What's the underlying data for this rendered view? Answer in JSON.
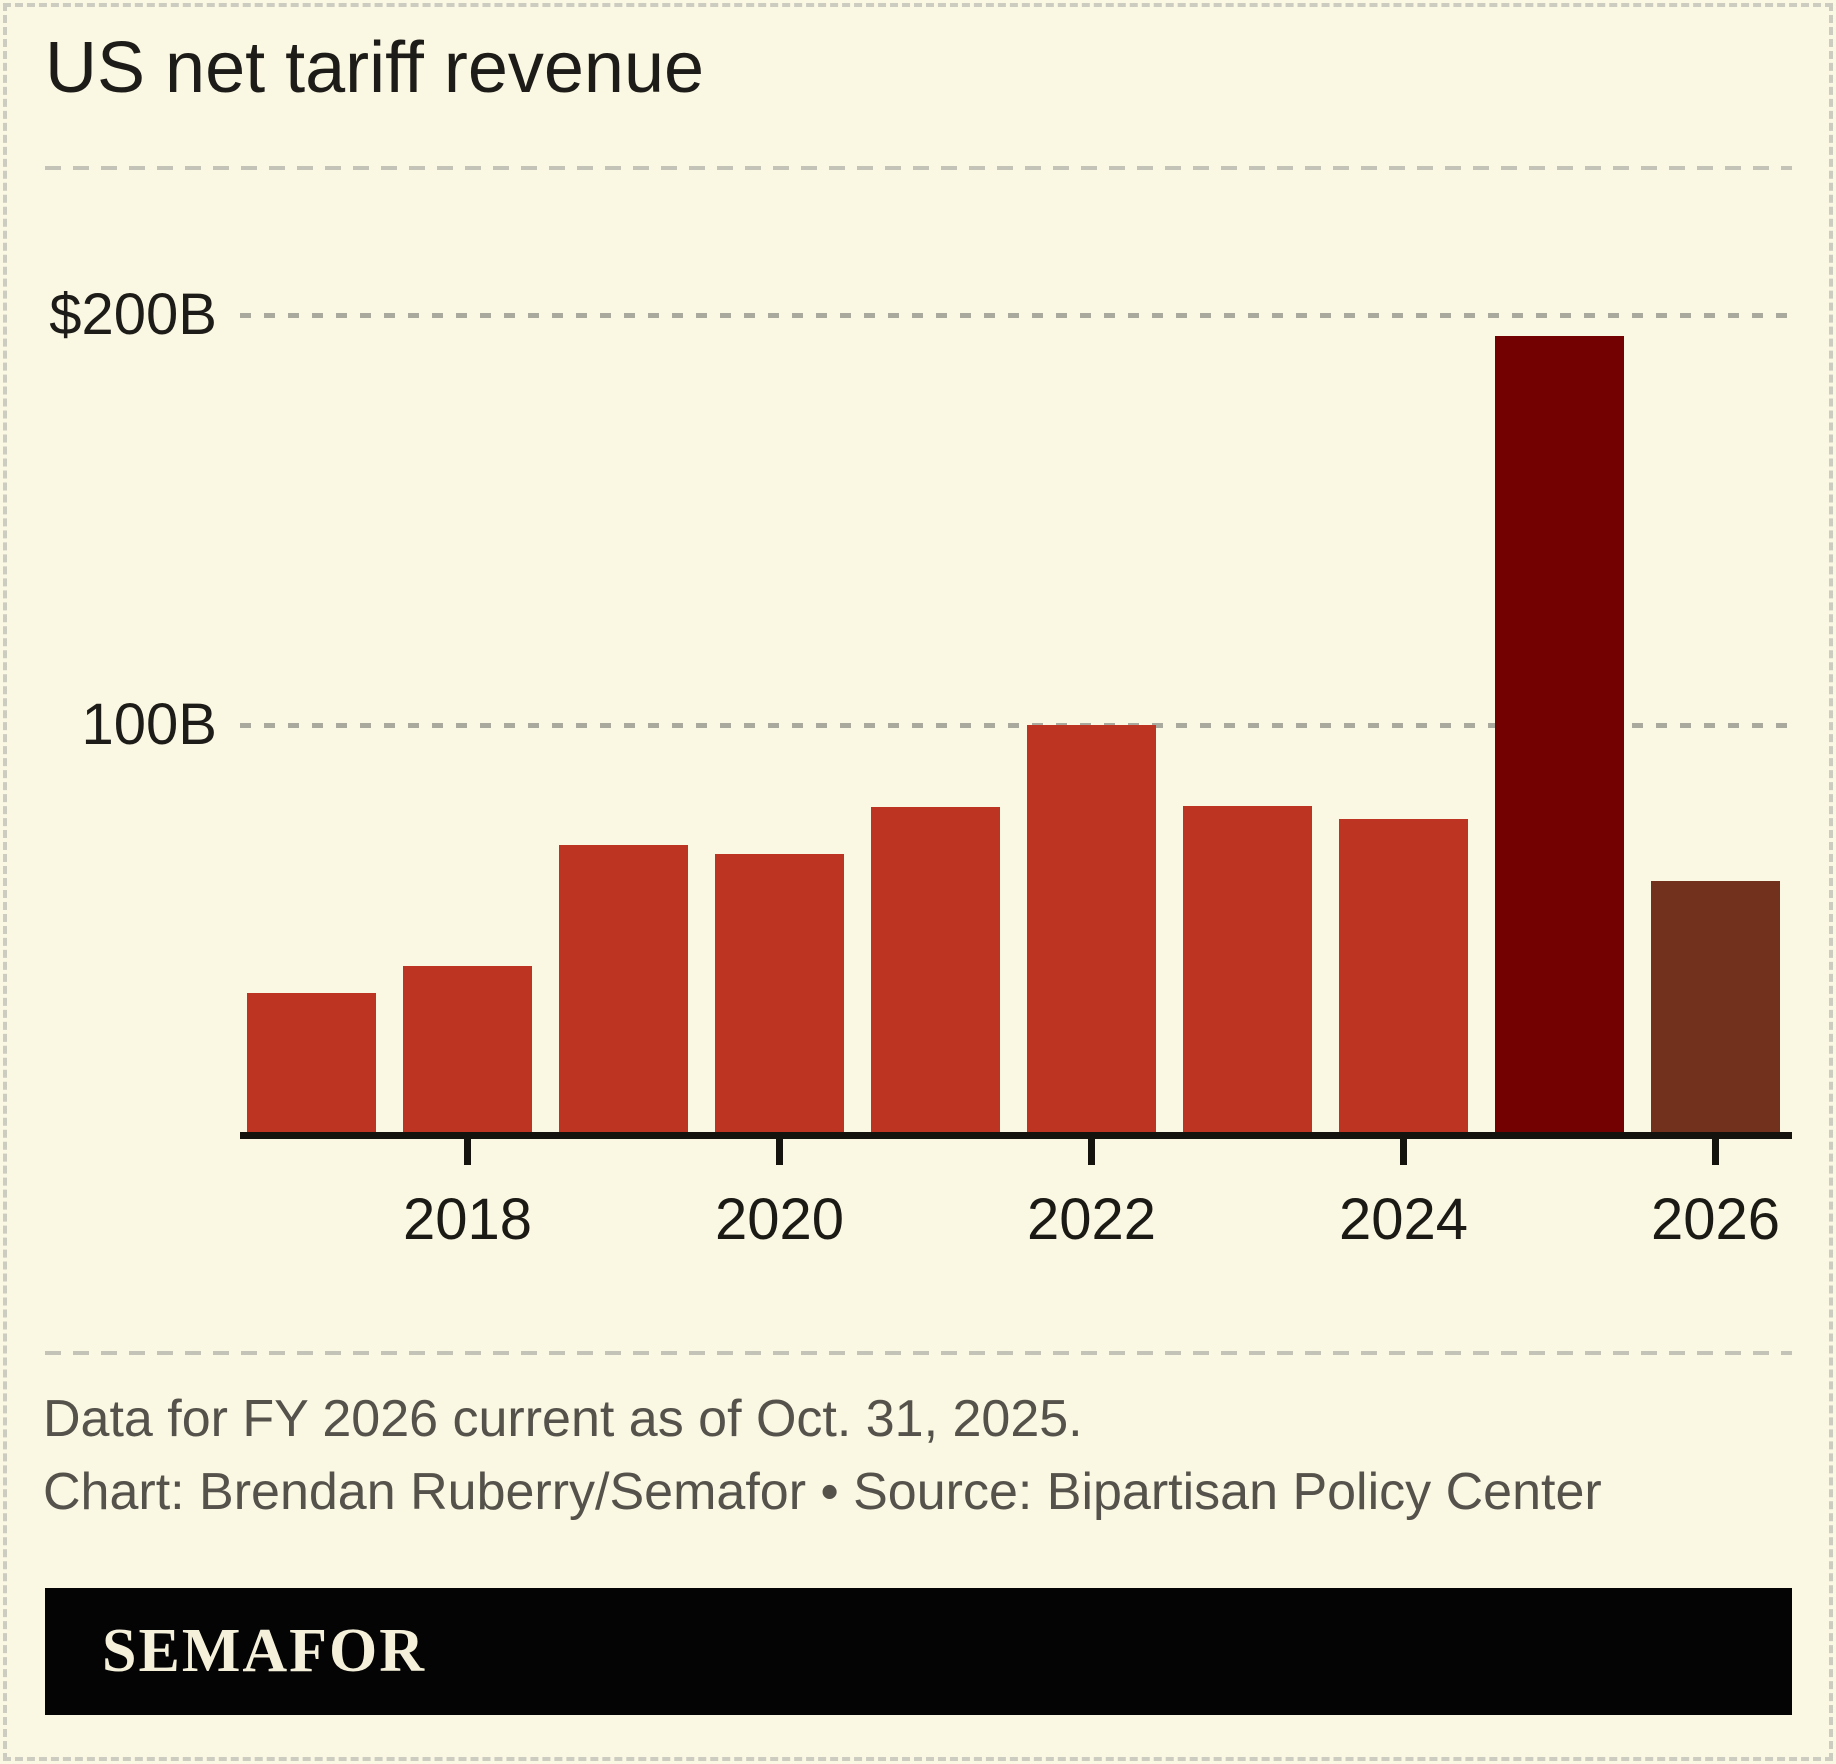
{
  "header": {
    "title": "US net tariff revenue"
  },
  "chart_data": {
    "type": "bar",
    "title": "US net tariff revenue",
    "unit": "USD billions",
    "years": [
      2017,
      2018,
      2019,
      2020,
      2021,
      2022,
      2023,
      2024,
      2025,
      2026
    ],
    "values": [
      34.6,
      41.3,
      70.8,
      68.6,
      80.0,
      99.9,
      80.3,
      77.0,
      195.0,
      62.0
    ],
    "y_ticks": [
      {
        "value": 200,
        "label": "$200B"
      },
      {
        "value": 100,
        "label": "100B"
      }
    ],
    "x_tick_years": [
      2018,
      2020,
      2022,
      2024,
      2026
    ],
    "x_tick_labels": [
      "2018",
      "2020",
      "2022",
      "2024",
      "2026"
    ],
    "ylim": [
      0,
      215
    ],
    "grid": "dashed horizontal gridlines at labeled y ticks",
    "legend": "none",
    "default_bar_color": "#bd3522",
    "bar_colors": {
      "2025": "#730101",
      "2026": "#71311d"
    }
  },
  "footer": {
    "note": "Data for FY 2026 current as of Oct. 31, 2025.",
    "credit": "Chart: Brendan Ruberry/Semafor • Source: Bipartisan Policy Center",
    "brand": "SEMAFOR"
  },
  "colors": {
    "background": "#faf7e2",
    "bar_default": "#bd3522",
    "bar_2025": "#730101",
    "bar_2026": "#71311d",
    "axis": "#15130e",
    "gridline_dash": "#a9a99d",
    "rule_dash": "#c3c3b7",
    "border_dash": "#ccccc1",
    "text_primary": "#1d1c18",
    "text_secondary": "#54524b",
    "banner_background": "#040404",
    "banner_text": "#f4f0da"
  }
}
